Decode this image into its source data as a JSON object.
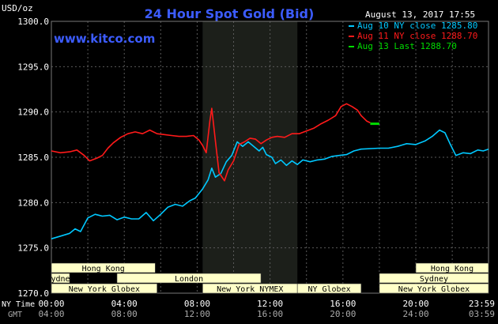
{
  "header": {
    "unit_label": "USD/oz",
    "title": "24 Hour Spot Gold (Bid)",
    "timestamp": "August 13, 2017 17:55",
    "watermark": "www.kitco.com"
  },
  "colors": {
    "background": "#000000",
    "grid": "#5a5a5a",
    "axis_text": "#ffffff",
    "title": "#3c5cff",
    "watermark": "#3c5cff",
    "shade": "#1c1f1a",
    "market_box_fill": "#ffffc8",
    "market_box_text": "#000000"
  },
  "legend": [
    {
      "label": "Aug 10 NY close 1285.80",
      "color": "#00c8ff"
    },
    {
      "label": "Aug 11 NY close 1288.70",
      "color": "#ff1a1a"
    },
    {
      "label": "Aug 13 Last 1288.70",
      "color": "#00dd00"
    }
  ],
  "axes": {
    "row_labels": [
      "NY Time",
      "GMT"
    ],
    "ny_time_ticks": [
      "00:00",
      "04:00",
      "08:00",
      "12:00",
      "16:00",
      "20:00",
      "23:59"
    ],
    "gmt_ticks": [
      "04:00",
      "08:00",
      "12:00",
      "16:00",
      "20:00",
      "24:00",
      "03:59"
    ]
  },
  "markets": [
    {
      "label": "Hong Kong",
      "start": 0.0,
      "end": 5.7,
      "row": 0
    },
    {
      "label": "Sydney",
      "start": 0.0,
      "end": 1.0,
      "row": 1
    },
    {
      "label": "London",
      "start": 3.6,
      "end": 11.5,
      "row": 1
    },
    {
      "label": "New York Globex",
      "start": 0.0,
      "end": 5.8,
      "row": 2
    },
    {
      "label": "New York NYMEX",
      "start": 8.3,
      "end": 13.5,
      "row": 2
    },
    {
      "label": "NY Globex",
      "start": 13.5,
      "end": 17.0,
      "row": 2
    },
    {
      "label": "Hong Kong",
      "start": 20.0,
      "end": 23.99,
      "row": 0
    },
    {
      "label": "Sydney",
      "start": 18.0,
      "end": 23.99,
      "row": 1
    },
    {
      "label": "New York Globex",
      "start": 18.0,
      "end": 23.99,
      "row": 2
    }
  ],
  "chart_data": {
    "type": "line",
    "ylabel": "USD/oz",
    "ylim": [
      1270,
      1300
    ],
    "xlim": [
      0,
      23.99
    ],
    "yticks": [
      "1270.0",
      "1275.0",
      "1280.0",
      "1285.0",
      "1290.0",
      "1295.0",
      "1300.0"
    ],
    "grid": true,
    "shaded_session_hours": [
      8.3,
      13.5
    ],
    "series": [
      {
        "name": "Aug 10 NY close 1285.80",
        "color": "#00c8ff",
        "points": [
          [
            0,
            1276.0
          ],
          [
            0.5,
            1276.3
          ],
          [
            1.0,
            1276.6
          ],
          [
            1.3,
            1277.1
          ],
          [
            1.6,
            1276.8
          ],
          [
            2.0,
            1278.3
          ],
          [
            2.4,
            1278.7
          ],
          [
            2.8,
            1278.5
          ],
          [
            3.2,
            1278.6
          ],
          [
            3.6,
            1278.1
          ],
          [
            4.0,
            1278.4
          ],
          [
            4.4,
            1278.2
          ],
          [
            4.8,
            1278.2
          ],
          [
            5.2,
            1278.9
          ],
          [
            5.6,
            1278.0
          ],
          [
            6.0,
            1278.7
          ],
          [
            6.4,
            1279.5
          ],
          [
            6.8,
            1279.8
          ],
          [
            7.2,
            1279.6
          ],
          [
            7.6,
            1280.2
          ],
          [
            7.9,
            1280.5
          ],
          [
            8.3,
            1281.5
          ],
          [
            8.6,
            1282.5
          ],
          [
            8.8,
            1283.8
          ],
          [
            9.0,
            1282.8
          ],
          [
            9.3,
            1283.2
          ],
          [
            9.6,
            1284.5
          ],
          [
            9.9,
            1285.2
          ],
          [
            10.2,
            1286.7
          ],
          [
            10.5,
            1286.2
          ],
          [
            10.8,
            1286.7
          ],
          [
            11.1,
            1286.2
          ],
          [
            11.4,
            1285.7
          ],
          [
            11.6,
            1286.1
          ],
          [
            11.8,
            1285.3
          ],
          [
            12.1,
            1285.0
          ],
          [
            12.3,
            1284.3
          ],
          [
            12.6,
            1284.7
          ],
          [
            12.9,
            1284.1
          ],
          [
            13.2,
            1284.6
          ],
          [
            13.5,
            1284.2
          ],
          [
            13.8,
            1284.7
          ],
          [
            14.2,
            1284.5
          ],
          [
            14.6,
            1284.7
          ],
          [
            15.0,
            1284.8
          ],
          [
            15.4,
            1285.1
          ],
          [
            15.8,
            1285.2
          ],
          [
            16.2,
            1285.3
          ],
          [
            16.6,
            1285.7
          ],
          [
            17.0,
            1285.9
          ],
          [
            18.0,
            1286.0
          ],
          [
            18.5,
            1286.0
          ],
          [
            19.0,
            1286.2
          ],
          [
            19.5,
            1286.5
          ],
          [
            20.0,
            1286.4
          ],
          [
            20.5,
            1286.8
          ],
          [
            20.9,
            1287.3
          ],
          [
            21.3,
            1288.0
          ],
          [
            21.6,
            1287.7
          ],
          [
            21.9,
            1286.4
          ],
          [
            22.2,
            1285.2
          ],
          [
            22.6,
            1285.5
          ],
          [
            23.0,
            1285.4
          ],
          [
            23.4,
            1285.8
          ],
          [
            23.7,
            1285.7
          ],
          [
            23.99,
            1285.9
          ]
        ]
      },
      {
        "name": "Aug 11 NY close 1288.70",
        "color": "#ff1a1a",
        "points": [
          [
            0,
            1285.7
          ],
          [
            0.5,
            1285.5
          ],
          [
            1.0,
            1285.6
          ],
          [
            1.4,
            1285.8
          ],
          [
            1.8,
            1285.2
          ],
          [
            2.1,
            1284.6
          ],
          [
            2.5,
            1284.9
          ],
          [
            2.8,
            1285.2
          ],
          [
            3.1,
            1286.0
          ],
          [
            3.4,
            1286.6
          ],
          [
            3.8,
            1287.2
          ],
          [
            4.2,
            1287.6
          ],
          [
            4.6,
            1287.8
          ],
          [
            5.0,
            1287.6
          ],
          [
            5.4,
            1288.0
          ],
          [
            5.8,
            1287.6
          ],
          [
            6.2,
            1287.5
          ],
          [
            6.6,
            1287.4
          ],
          [
            7.0,
            1287.3
          ],
          [
            7.4,
            1287.3
          ],
          [
            7.8,
            1287.4
          ],
          [
            8.1,
            1286.9
          ],
          [
            8.3,
            1286.3
          ],
          [
            8.5,
            1285.5
          ],
          [
            8.7,
            1289.0
          ],
          [
            8.8,
            1290.4
          ],
          [
            9.0,
            1286.8
          ],
          [
            9.2,
            1283.3
          ],
          [
            9.5,
            1282.4
          ],
          [
            9.7,
            1283.6
          ],
          [
            10.0,
            1284.6
          ],
          [
            10.3,
            1286.4
          ],
          [
            10.6,
            1286.7
          ],
          [
            10.9,
            1287.1
          ],
          [
            11.2,
            1287.0
          ],
          [
            11.5,
            1286.5
          ],
          [
            11.8,
            1286.9
          ],
          [
            12.1,
            1287.2
          ],
          [
            12.4,
            1287.3
          ],
          [
            12.8,
            1287.2
          ],
          [
            13.2,
            1287.6
          ],
          [
            13.6,
            1287.6
          ],
          [
            14.0,
            1287.9
          ],
          [
            14.4,
            1288.2
          ],
          [
            14.8,
            1288.7
          ],
          [
            15.2,
            1289.1
          ],
          [
            15.6,
            1289.6
          ],
          [
            15.9,
            1290.6
          ],
          [
            16.2,
            1290.9
          ],
          [
            16.5,
            1290.6
          ],
          [
            16.8,
            1290.2
          ],
          [
            17.0,
            1289.6
          ],
          [
            17.3,
            1289.0
          ],
          [
            17.5,
            1288.8
          ]
        ]
      },
      {
        "name": "Aug 13 Last 1288.70",
        "color": "#00dd00",
        "points": [
          [
            17.5,
            1288.7
          ],
          [
            18.0,
            1288.7
          ]
        ]
      }
    ]
  }
}
